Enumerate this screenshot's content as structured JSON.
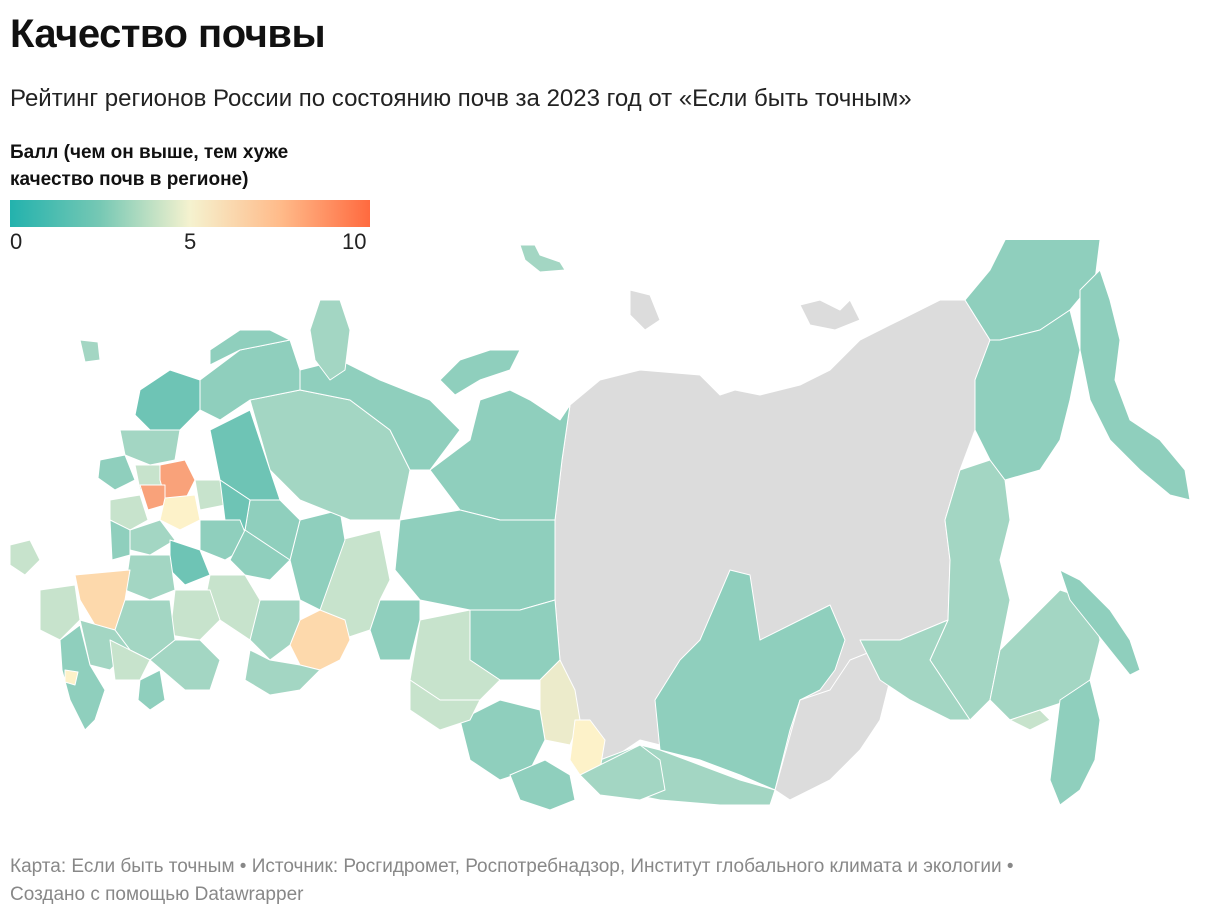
{
  "header": {
    "title": "Качество почвы",
    "subtitle": "Рейтинг регионов России по состоянию почв за 2023 год от «Если быть точным»"
  },
  "legend": {
    "title": "Балл (чем он выше, тем хуже качество почв в регионе)",
    "min_label": "0",
    "mid_label": "5",
    "max_label": "10",
    "colors": [
      "#23b2ad",
      "#76c8b4",
      "#f5f2cf",
      "#ffbb8a",
      "#ff6a3f"
    ]
  },
  "map": {
    "colors": {
      "low": "#8fcfbd",
      "low_alt": "#a3d6c3",
      "teal": "#6ec4b5",
      "pale": "#c7e3cc",
      "yellowish": "#ecebcb",
      "peach": "#fdd9ac",
      "orange": "#f9a27a",
      "no_data": "#dcdcdc"
    }
  },
  "footer": {
    "line1": "Карта: Если быть точным • Источник: Росгидромет, Роспотребнадзор, Институт глобального климата и экологии •",
    "line2": "Создано с помощью Datawrapper"
  }
}
